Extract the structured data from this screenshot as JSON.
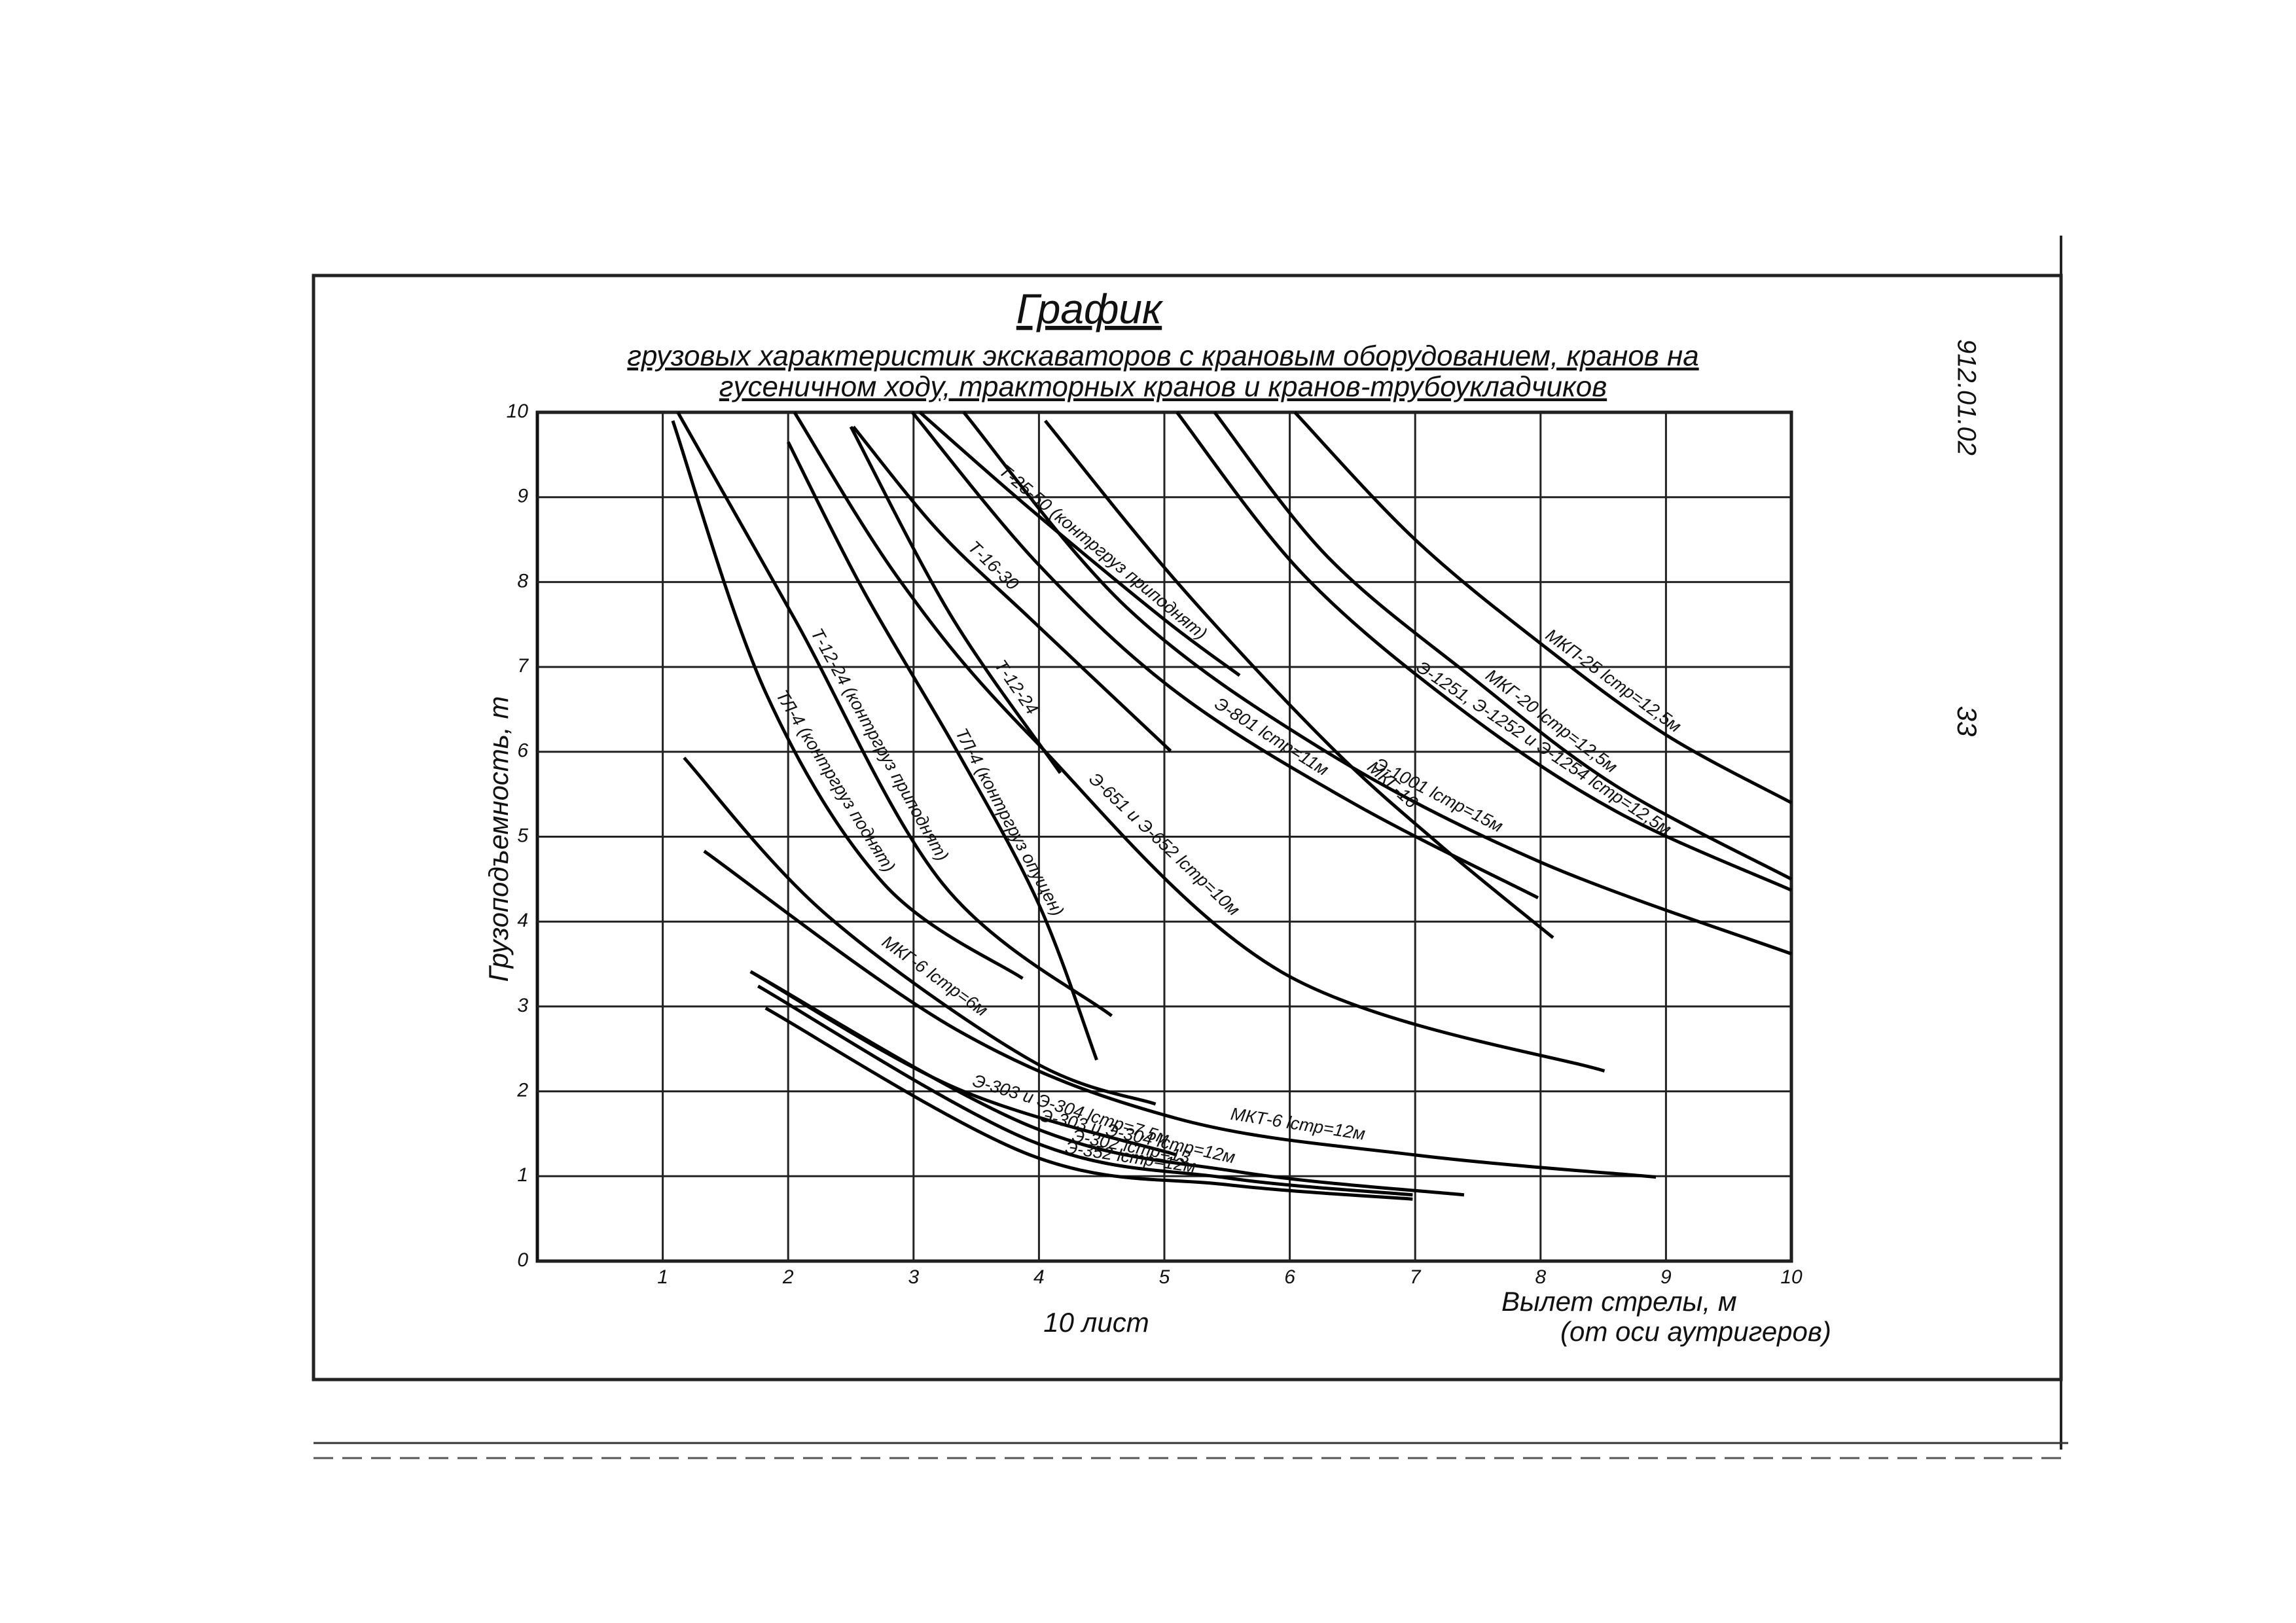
{
  "document": {
    "code": "912.01.02",
    "page": "33"
  },
  "chart_data": {
    "type": "line",
    "title": "График",
    "subtitle": [
      "грузовых характеристик экскаваторов с крановым оборудованием, кранов на",
      "гусеничном ходу, тракторных кранов и кранов-трубоукладчиков"
    ],
    "y_label": "Грузоподъемность, т",
    "x_label": [
      "Вылет стрелы, м",
      "(от оси аутригеров)"
    ],
    "note": "10 лист",
    "xlim": [
      0,
      10
    ],
    "ylim": [
      0,
      10
    ],
    "xticks": [
      1,
      2,
      3,
      4,
      5,
      6,
      7,
      8,
      9,
      10
    ],
    "yticks": [
      0,
      1,
      2,
      3,
      4,
      5,
      6,
      7,
      8,
      9,
      10
    ],
    "grid": true,
    "series": [
      {
        "name": "МКП-25 lстр=12,5м",
        "color": "#000000",
        "x": [
          6.04,
          7.0,
          8.04,
          9.0,
          10.0
        ],
        "values": [
          10,
          8.5,
          7.23,
          6.2,
          5.4
        ]
      },
      {
        "name": "МКГ-20 lстр=12,5м",
        "color": "#000000",
        "x": [
          5.4,
          6.3,
          7.45,
          8.6,
          10.0
        ],
        "values": [
          10,
          8.3,
          6.88,
          5.6,
          4.5
        ]
      },
      {
        "name": "Э-1251, Э-1252 и Э-1254 lстр=12,5м",
        "color": "#000000",
        "x": [
          5.1,
          6.1,
          7.34,
          8.6,
          10.0
        ],
        "values": [
          10,
          8.1,
          6.53,
          5.3,
          4.37
        ]
      },
      {
        "name": "Э-1001 lстр=15м",
        "color": "#000000",
        "x": [
          3.4,
          4.7,
          6.28,
          8.0,
          10.0
        ],
        "values": [
          10,
          7.7,
          6.01,
          4.7,
          3.62
        ]
      },
      {
        "name": "МКГ-16",
        "color": "#000000",
        "x": [
          4.05,
          5.1,
          6.3,
          7.2,
          8.1
        ],
        "values": [
          9.9,
          8.0,
          6.1,
          4.9,
          3.81
        ]
      },
      {
        "name": "Т-25-50 (контргруз приподнят)",
        "color": "#000000",
        "x": [
          3.05,
          3.9,
          4.99,
          5.6
        ],
        "values": [
          10,
          8.9,
          7.57,
          6.9
        ]
      },
      {
        "name": "Э-801 lстр=11м",
        "color": "#000000",
        "x": [
          2.99,
          4.0,
          5.1,
          6.5,
          7.98
        ],
        "values": [
          10,
          8.2,
          6.7,
          5.4,
          4.28
        ]
      },
      {
        "name": "Т-16-30",
        "color": "#000000",
        "x": [
          2.52,
          3.2,
          3.93,
          5.05
        ],
        "values": [
          9.83,
          8.6,
          7.57,
          6.01
        ]
      },
      {
        "name": "Э-651 и Э-652 lстр=10м",
        "color": "#000000",
        "x": [
          2.05,
          2.9,
          3.93,
          5.93,
          8.51
        ],
        "values": [
          10,
          8.0,
          6.19,
          3.41,
          2.24
        ]
      },
      {
        "name": "Т-12-24",
        "color": "#000000",
        "x": [
          2.5,
          3.3,
          4.17
        ],
        "values": [
          9.83,
          7.6,
          5.75
        ]
      },
      {
        "name": "ТЛ-4 (контргруз опущен)",
        "color": "#000000",
        "x": [
          2.0,
          2.6,
          3.35,
          4.0,
          4.46
        ],
        "values": [
          9.65,
          7.9,
          6.0,
          4.2,
          2.37
        ]
      },
      {
        "name": "Т-12-24 (контргруз приподнят)",
        "color": "#000000",
        "x": [
          1.12,
          2.05,
          3.23,
          4.58
        ],
        "values": [
          10,
          7.57,
          4.45,
          2.89
        ]
      },
      {
        "name": "ТЛ-4 (контргруз поднят)",
        "color": "#000000",
        "x": [
          1.08,
          1.82,
          2.76,
          3.87
        ],
        "values": [
          9.9,
          6.7,
          4.45,
          3.33
        ]
      },
      {
        "name": "МКГ-6 lстр=6м",
        "color": "#000000",
        "x": [
          1.17,
          2.29,
          3.93,
          4.93
        ],
        "values": [
          5.93,
          4.1,
          2.37,
          1.85
        ]
      },
      {
        "name": "МКТ-6 lстр=12м",
        "color": "#000000",
        "x": [
          1.33,
          3.35,
          5.1,
          7.0,
          8.92
        ],
        "values": [
          4.83,
          2.72,
          1.68,
          1.25,
          0.99
        ]
      },
      {
        "name": "Э-303 и Э-304 lстр=7,5м",
        "color": "#000000",
        "x": [
          1.7,
          3.35,
          5.1
        ],
        "values": [
          3.41,
          2.03,
          1.25
        ]
      },
      {
        "name": "Э-303 и Э-304 lстр=12м",
        "color": "#000000",
        "x": [
          1.7,
          3.93,
          5.6,
          7.39
        ],
        "values": [
          3.41,
          1.59,
          1.05,
          0.78
        ]
      },
      {
        "name": "Э-302 lстр=13",
        "color": "#000000",
        "x": [
          1.76,
          3.93,
          5.5,
          6.98
        ],
        "values": [
          3.24,
          1.42,
          0.98,
          0.78
        ]
      },
      {
        "name": "Э-352 lстр=12м",
        "color": "#000000",
        "x": [
          1.82,
          3.93,
          5.5,
          6.98
        ],
        "values": [
          2.98,
          1.25,
          0.9,
          0.73
        ]
      }
    ]
  }
}
